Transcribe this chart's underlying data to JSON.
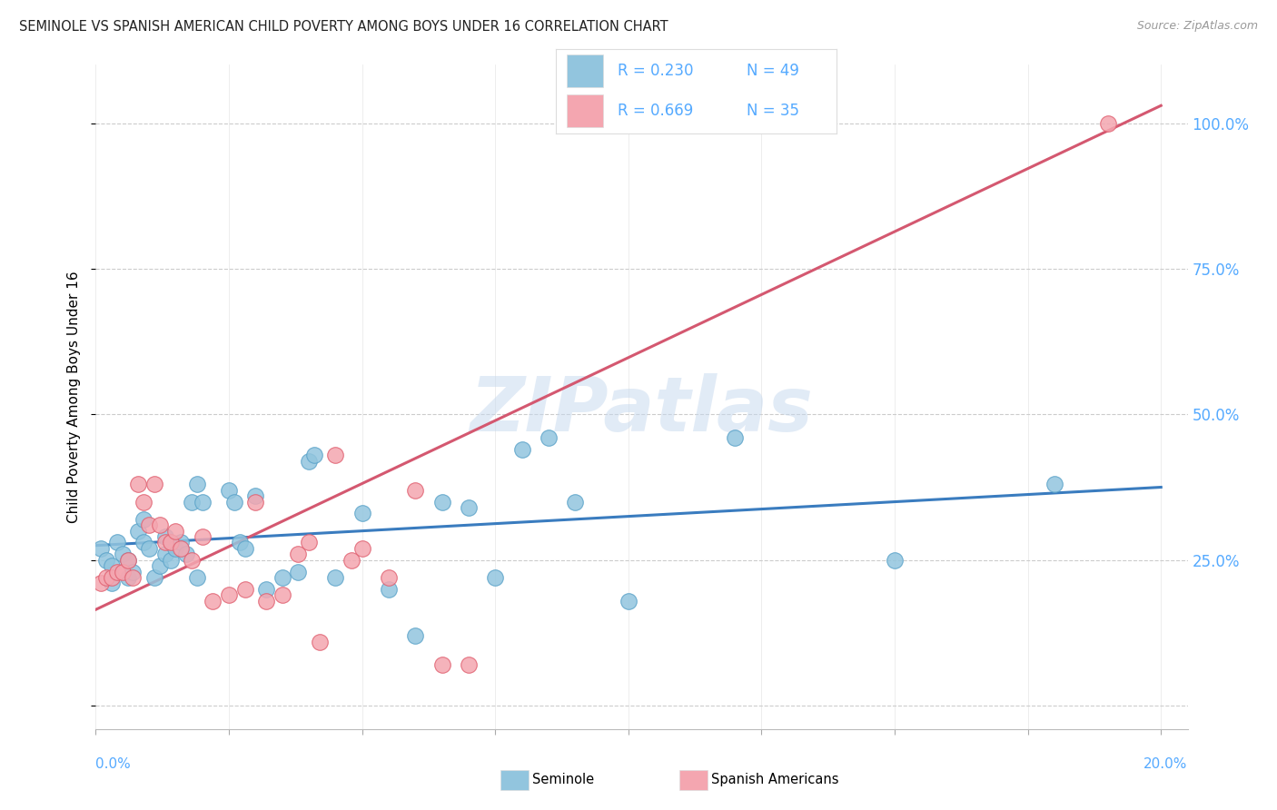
{
  "title": "SEMINOLE VS SPANISH AMERICAN CHILD POVERTY AMONG BOYS UNDER 16 CORRELATION CHART",
  "source": "Source: ZipAtlas.com",
  "ylabel": "Child Poverty Among Boys Under 16",
  "watermark": "ZIPatlas",
  "seminole_color": "#92c5de",
  "seminole_edge": "#5ba3c9",
  "spanish_color": "#f4a6b0",
  "spanish_edge": "#e06070",
  "seminole_line_color": "#3a7cbf",
  "spanish_line_color": "#d45870",
  "background_color": "#ffffff",
  "grid_color": "#cccccc",
  "label_color": "#55aaff",
  "title_color": "#222222",
  "seminole_trend_x": [
    0.0,
    0.2
  ],
  "seminole_trend_y": [
    0.275,
    0.375
  ],
  "spanish_trend_x": [
    0.0,
    0.2
  ],
  "spanish_trend_y": [
    0.165,
    1.03
  ],
  "seminole_x": [
    0.001,
    0.002,
    0.003,
    0.004,
    0.005,
    0.006,
    0.006,
    0.007,
    0.008,
    0.009,
    0.01,
    0.011,
    0.012,
    0.013,
    0.013,
    0.014,
    0.015,
    0.016,
    0.017,
    0.018,
    0.019,
    0.02,
    0.025,
    0.026,
    0.027,
    0.028,
    0.03,
    0.032,
    0.035,
    0.038,
    0.04,
    0.041,
    0.045,
    0.05,
    0.055,
    0.06,
    0.065,
    0.07,
    0.075,
    0.08,
    0.085,
    0.09,
    0.1,
    0.12,
    0.15,
    0.18,
    0.003,
    0.009,
    0.019
  ],
  "seminole_y": [
    0.27,
    0.25,
    0.24,
    0.28,
    0.26,
    0.25,
    0.22,
    0.23,
    0.3,
    0.28,
    0.27,
    0.22,
    0.24,
    0.29,
    0.26,
    0.25,
    0.27,
    0.28,
    0.26,
    0.35,
    0.22,
    0.35,
    0.37,
    0.35,
    0.28,
    0.27,
    0.36,
    0.2,
    0.22,
    0.23,
    0.42,
    0.43,
    0.22,
    0.33,
    0.2,
    0.12,
    0.35,
    0.34,
    0.22,
    0.44,
    0.46,
    0.35,
    0.18,
    0.46,
    0.25,
    0.38,
    0.21,
    0.32,
    0.38
  ],
  "spanish_x": [
    0.001,
    0.002,
    0.003,
    0.004,
    0.005,
    0.006,
    0.007,
    0.008,
    0.009,
    0.01,
    0.011,
    0.012,
    0.013,
    0.014,
    0.015,
    0.016,
    0.018,
    0.02,
    0.022,
    0.025,
    0.028,
    0.03,
    0.032,
    0.035,
    0.038,
    0.04,
    0.042,
    0.045,
    0.048,
    0.05,
    0.055,
    0.06,
    0.065,
    0.07,
    0.19
  ],
  "spanish_y": [
    0.21,
    0.22,
    0.22,
    0.23,
    0.23,
    0.25,
    0.22,
    0.38,
    0.35,
    0.31,
    0.38,
    0.31,
    0.28,
    0.28,
    0.3,
    0.27,
    0.25,
    0.29,
    0.18,
    0.19,
    0.2,
    0.35,
    0.18,
    0.19,
    0.26,
    0.28,
    0.11,
    0.43,
    0.25,
    0.27,
    0.22,
    0.37,
    0.07,
    0.07,
    1.0
  ],
  "xtick_positions": [
    0.0,
    0.025,
    0.05,
    0.075,
    0.1,
    0.125,
    0.15,
    0.175,
    0.2
  ],
  "ytick_positions": [
    0.0,
    0.25,
    0.5,
    0.75,
    1.0
  ],
  "ytick_labels": [
    "",
    "25.0%",
    "50.0%",
    "75.0%",
    "100.0%"
  ],
  "xmin": 0.0,
  "xmax": 0.205,
  "ymin": -0.04,
  "ymax": 1.1
}
